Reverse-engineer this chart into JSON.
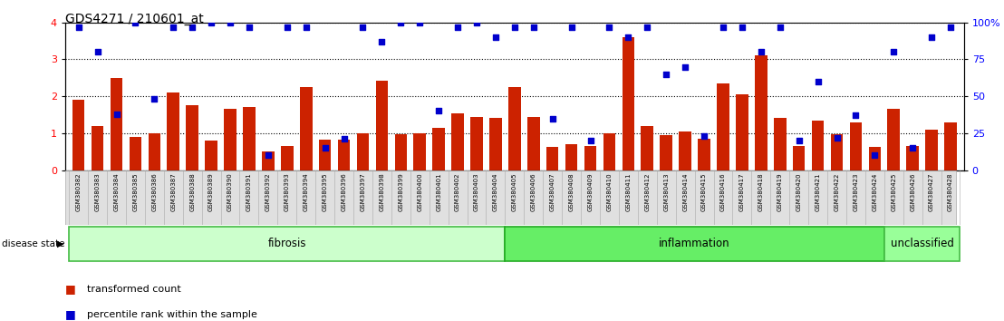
{
  "title": "GDS4271 / 210601_at",
  "samples": [
    "GSM380382",
    "GSM380383",
    "GSM380384",
    "GSM380385",
    "GSM380386",
    "GSM380387",
    "GSM380388",
    "GSM380389",
    "GSM380390",
    "GSM380391",
    "GSM380392",
    "GSM380393",
    "GSM380394",
    "GSM380395",
    "GSM380396",
    "GSM380397",
    "GSM380398",
    "GSM380399",
    "GSM380400",
    "GSM380401",
    "GSM380402",
    "GSM380403",
    "GSM380404",
    "GSM380405",
    "GSM380406",
    "GSM380407",
    "GSM380408",
    "GSM380409",
    "GSM380410",
    "GSM380411",
    "GSM380412",
    "GSM380413",
    "GSM380414",
    "GSM380415",
    "GSM380416",
    "GSM380417",
    "GSM380418",
    "GSM380419",
    "GSM380420",
    "GSM380421",
    "GSM380422",
    "GSM380423",
    "GSM380424",
    "GSM380425",
    "GSM380426",
    "GSM380427",
    "GSM380428"
  ],
  "bar_values": [
    1.9,
    1.2,
    2.5,
    0.9,
    1.0,
    2.1,
    1.75,
    0.8,
    1.65,
    1.72,
    0.5,
    0.65,
    2.25,
    0.82,
    0.82,
    1.0,
    2.42,
    0.97,
    1.0,
    1.15,
    1.55,
    1.45,
    1.42,
    2.25,
    1.45,
    0.62,
    0.7,
    0.65,
    1.0,
    3.6,
    1.2,
    0.95,
    1.05,
    0.85,
    2.35,
    2.05,
    3.1,
    1.42,
    0.65,
    1.35,
    0.97,
    1.3,
    0.62,
    1.65,
    0.65,
    1.1,
    1.3
  ],
  "percentile_values": [
    97,
    80,
    38,
    100,
    48,
    97,
    97,
    100,
    100,
    97,
    10,
    97,
    97,
    15,
    21,
    97,
    87,
    100,
    100,
    40,
    97,
    100,
    90,
    97,
    97,
    35,
    97,
    20,
    97,
    90,
    97,
    65,
    70,
    23,
    97,
    97,
    80,
    97,
    20,
    60,
    22,
    37,
    10,
    80,
    15,
    90,
    97
  ],
  "groups": [
    {
      "name": "fibrosis",
      "start": 0,
      "end": 23,
      "color": "#ccffcc",
      "border": "#44bb44"
    },
    {
      "name": "inflammation",
      "start": 23,
      "end": 43,
      "color": "#66ee66",
      "border": "#22aa22"
    },
    {
      "name": "unclassified",
      "start": 43,
      "end": 47,
      "color": "#99ff99",
      "border": "#44bb44"
    }
  ],
  "ylim_left": [
    0,
    4
  ],
  "ylim_right": [
    0,
    100
  ],
  "bar_color": "#cc2200",
  "dot_color": "#0000cc",
  "yticks_left": [
    0,
    1,
    2,
    3,
    4
  ],
  "yticks_right": [
    0,
    25,
    50,
    75,
    100
  ],
  "disease_state_label": "disease state"
}
